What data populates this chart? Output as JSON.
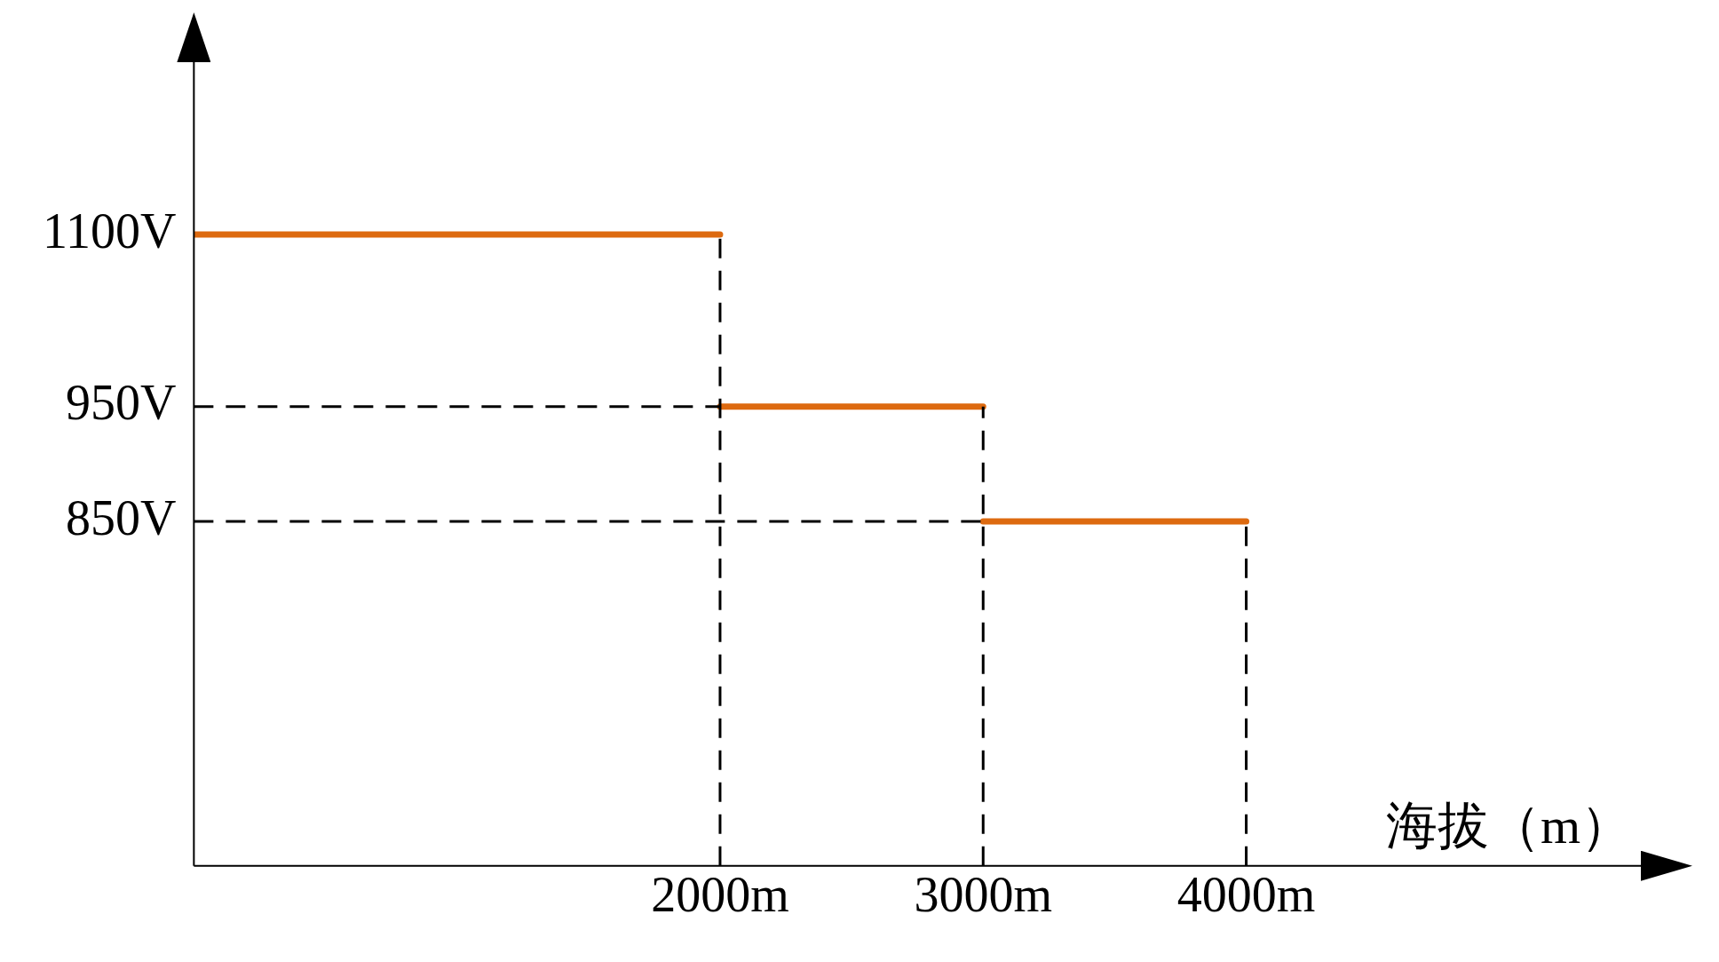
{
  "chart_data": {
    "type": "line",
    "xlabel": "海拔（m）",
    "series": [
      {
        "color": "#dd6a10",
        "x": [
          0,
          2000
        ],
        "values": [
          1100,
          1100
        ]
      },
      {
        "color": "#dd6a10",
        "x": [
          2000,
          3000
        ],
        "values": [
          950,
          950
        ]
      },
      {
        "color": "#dd6a10",
        "x": [
          3000,
          4000
        ],
        "values": [
          850,
          850
        ]
      }
    ],
    "xlim": [
      0,
      5500
    ],
    "xticks": [
      {
        "value": 2000,
        "label": "2000m"
      },
      {
        "value": 3000,
        "label": "3000m"
      },
      {
        "value": 4000,
        "label": "4000m"
      }
    ],
    "ylim": [
      550,
      1250
    ],
    "yticks": [
      {
        "value": 850,
        "label": "850V"
      },
      {
        "value": 950,
        "label": "950V"
      },
      {
        "value": 1100,
        "label": "1100V"
      }
    ],
    "ref_lines": [
      {
        "axis": "y",
        "value": 950,
        "color": "#000000",
        "line_style": "dashed"
      },
      {
        "axis": "y",
        "value": 850,
        "color": "#000000",
        "line_style": "dashed"
      },
      {
        "axis": "x",
        "value": 2000,
        "color": "#000000",
        "line_style": "dashed"
      },
      {
        "axis": "x",
        "value": 3000,
        "color": "#000000",
        "line_style": "dashed"
      },
      {
        "axis": "x",
        "value": 4000,
        "color": "#000000",
        "line_style": "dashed"
      }
    ],
    "grid": false,
    "legend": false,
    "marker": "none",
    "line_style": "solid"
  }
}
